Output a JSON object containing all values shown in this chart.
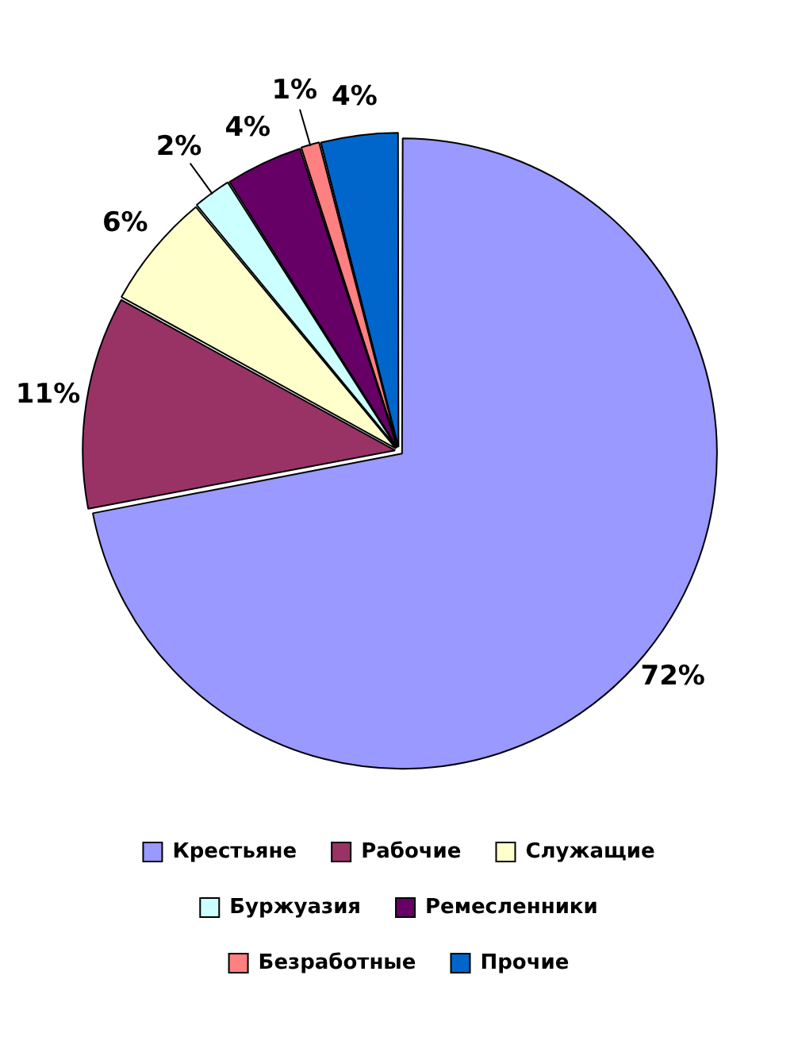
{
  "chart_data": {
    "type": "pie",
    "categories": [
      "Крестьяне",
      "Рабочие",
      "Служащие",
      "Буржуазия",
      "Ремесленники",
      "Безработные",
      "Прочие"
    ],
    "values": [
      72,
      11,
      6,
      2,
      4,
      1,
      4
    ],
    "colors": [
      "#9999ff",
      "#993366",
      "#ffffcc",
      "#ccffff",
      "#660066",
      "#ff8080",
      "#0066cc"
    ],
    "value_labels": [
      "72%",
      "11%",
      "6%",
      "2%",
      "4%",
      "1%",
      "4%"
    ],
    "legend": "bottom"
  }
}
